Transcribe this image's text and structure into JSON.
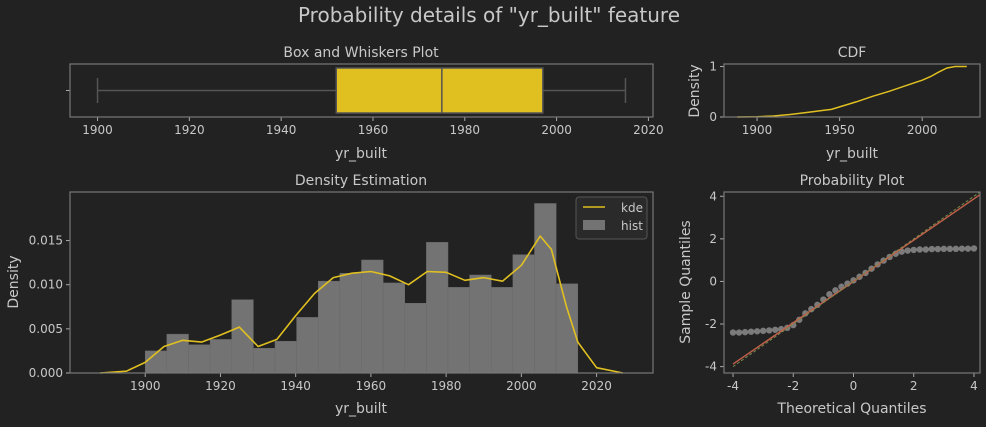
{
  "figure": {
    "title": "Probability details of \"yr_built\" feature",
    "colors": {
      "background": "#222222",
      "accent": "#e0c020",
      "hist": "#737373",
      "frame": "#777777",
      "text": "#c8c8c8",
      "qq_points": "#9a9a9a",
      "qq_line": "#c0604a"
    }
  },
  "chart_data": [
    {
      "id": "box",
      "type": "box",
      "title": "Box and Whiskers Plot",
      "xlabel": "yr_built",
      "xlim": [
        1894,
        2021
      ],
      "xticks": [
        1900,
        1920,
        1940,
        1960,
        1980,
        2000,
        2020
      ],
      "stats": {
        "whislo": 1900,
        "q1": 1952,
        "median": 1975,
        "q3": 1997,
        "whishi": 2015
      }
    },
    {
      "id": "cdf",
      "type": "line",
      "title": "CDF",
      "xlabel": "yr_built",
      "ylabel": "Density",
      "xlim": [
        1880,
        2035
      ],
      "ylim": [
        0,
        1.05
      ],
      "xticks": [
        1900,
        1950,
        2000
      ],
      "yticks": [
        0,
        1
      ],
      "x": [
        1888,
        1900,
        1910,
        1920,
        1930,
        1940,
        1945,
        1950,
        1960,
        1970,
        1980,
        1990,
        2000,
        2005,
        2010,
        2015,
        2020,
        2027
      ],
      "y": [
        0,
        0.005,
        0.02,
        0.05,
        0.09,
        0.13,
        0.15,
        0.2,
        0.3,
        0.41,
        0.51,
        0.62,
        0.73,
        0.8,
        0.89,
        0.97,
        1.0,
        1.0
      ]
    },
    {
      "id": "density",
      "type": "bar",
      "title": "Density Estimation",
      "xlabel": "yr_built",
      "ylabel": "Density",
      "xlim": [
        1880,
        2035
      ],
      "ylim": [
        0,
        0.0205
      ],
      "xticks": [
        1900,
        1920,
        1940,
        1960,
        1980,
        2000,
        2020
      ],
      "yticks": [
        0.0,
        0.005,
        0.01,
        0.015
      ],
      "ytick_labels": [
        "0.000",
        "0.005",
        "0.010",
        "0.015"
      ],
      "legend": {
        "position": "top-right",
        "entries": [
          "kde",
          "hist"
        ]
      },
      "hist_edges": [
        1900,
        1905.75,
        1911.5,
        1917.25,
        1923,
        1928.75,
        1934.5,
        1940.25,
        1946,
        1951.75,
        1957.5,
        1963.25,
        1969,
        1974.75,
        1980.5,
        1986.25,
        1992,
        1997.75,
        2003.5,
        2009.25,
        2015
      ],
      "hist_values": [
        0.0025,
        0.0044,
        0.0032,
        0.0038,
        0.0083,
        0.0028,
        0.0036,
        0.0063,
        0.0104,
        0.0113,
        0.0128,
        0.0102,
        0.0079,
        0.0148,
        0.0097,
        0.0111,
        0.0097,
        0.0134,
        0.0192,
        0.0101
      ],
      "kde_x": [
        1888,
        1895,
        1900,
        1905,
        1910,
        1915,
        1920,
        1925,
        1930,
        1935,
        1940,
        1945,
        1950,
        1955,
        1960,
        1965,
        1970,
        1975,
        1980,
        1985,
        1990,
        1995,
        2000,
        2005,
        2008,
        2012,
        2015,
        2020,
        2027
      ],
      "kde_y": [
        0.0,
        0.0002,
        0.0012,
        0.003,
        0.0037,
        0.0035,
        0.0043,
        0.0052,
        0.003,
        0.0038,
        0.0065,
        0.009,
        0.0108,
        0.0113,
        0.0115,
        0.011,
        0.01,
        0.0115,
        0.0114,
        0.0105,
        0.0108,
        0.0104,
        0.0122,
        0.0155,
        0.014,
        0.0075,
        0.0035,
        0.0006,
        0.0
      ]
    },
    {
      "id": "qq",
      "type": "scatter",
      "title": "Probability Plot",
      "xlabel": "Theoretical Quantiles",
      "ylabel": "Sample Quantiles",
      "xlim": [
        -4.3,
        4.2
      ],
      "ylim": [
        -4.3,
        4.2
      ],
      "xticks": [
        -4,
        -2,
        0,
        2,
        4
      ],
      "yticks": [
        -4,
        -2,
        0,
        2,
        4
      ],
      "points_x": [
        -4.0,
        -3.8,
        -3.6,
        -3.4,
        -3.2,
        -3.0,
        -2.8,
        -2.6,
        -2.4,
        -2.2,
        -2.0,
        -1.8,
        -1.6,
        -1.4,
        -1.2,
        -1.0,
        -0.8,
        -0.6,
        -0.4,
        -0.2,
        0.0,
        0.2,
        0.4,
        0.6,
        0.8,
        1.0,
        1.2,
        1.4,
        1.6,
        1.8,
        2.0,
        2.2,
        2.4,
        2.6,
        2.8,
        3.0,
        3.2,
        3.4,
        3.6,
        3.8,
        4.0
      ],
      "points_y": [
        -2.4,
        -2.4,
        -2.38,
        -2.36,
        -2.34,
        -2.32,
        -2.3,
        -2.27,
        -2.24,
        -2.18,
        -2.05,
        -1.8,
        -1.5,
        -1.3,
        -1.1,
        -0.85,
        -0.6,
        -0.42,
        -0.25,
        -0.1,
        0.05,
        0.22,
        0.4,
        0.6,
        0.8,
        0.98,
        1.15,
        1.3,
        1.4,
        1.45,
        1.48,
        1.5,
        1.5,
        1.52,
        1.52,
        1.53,
        1.53,
        1.53,
        1.54,
        1.54,
        1.55
      ],
      "fit_line": {
        "slope": 0.97,
        "intercept": 0.0
      }
    }
  ]
}
